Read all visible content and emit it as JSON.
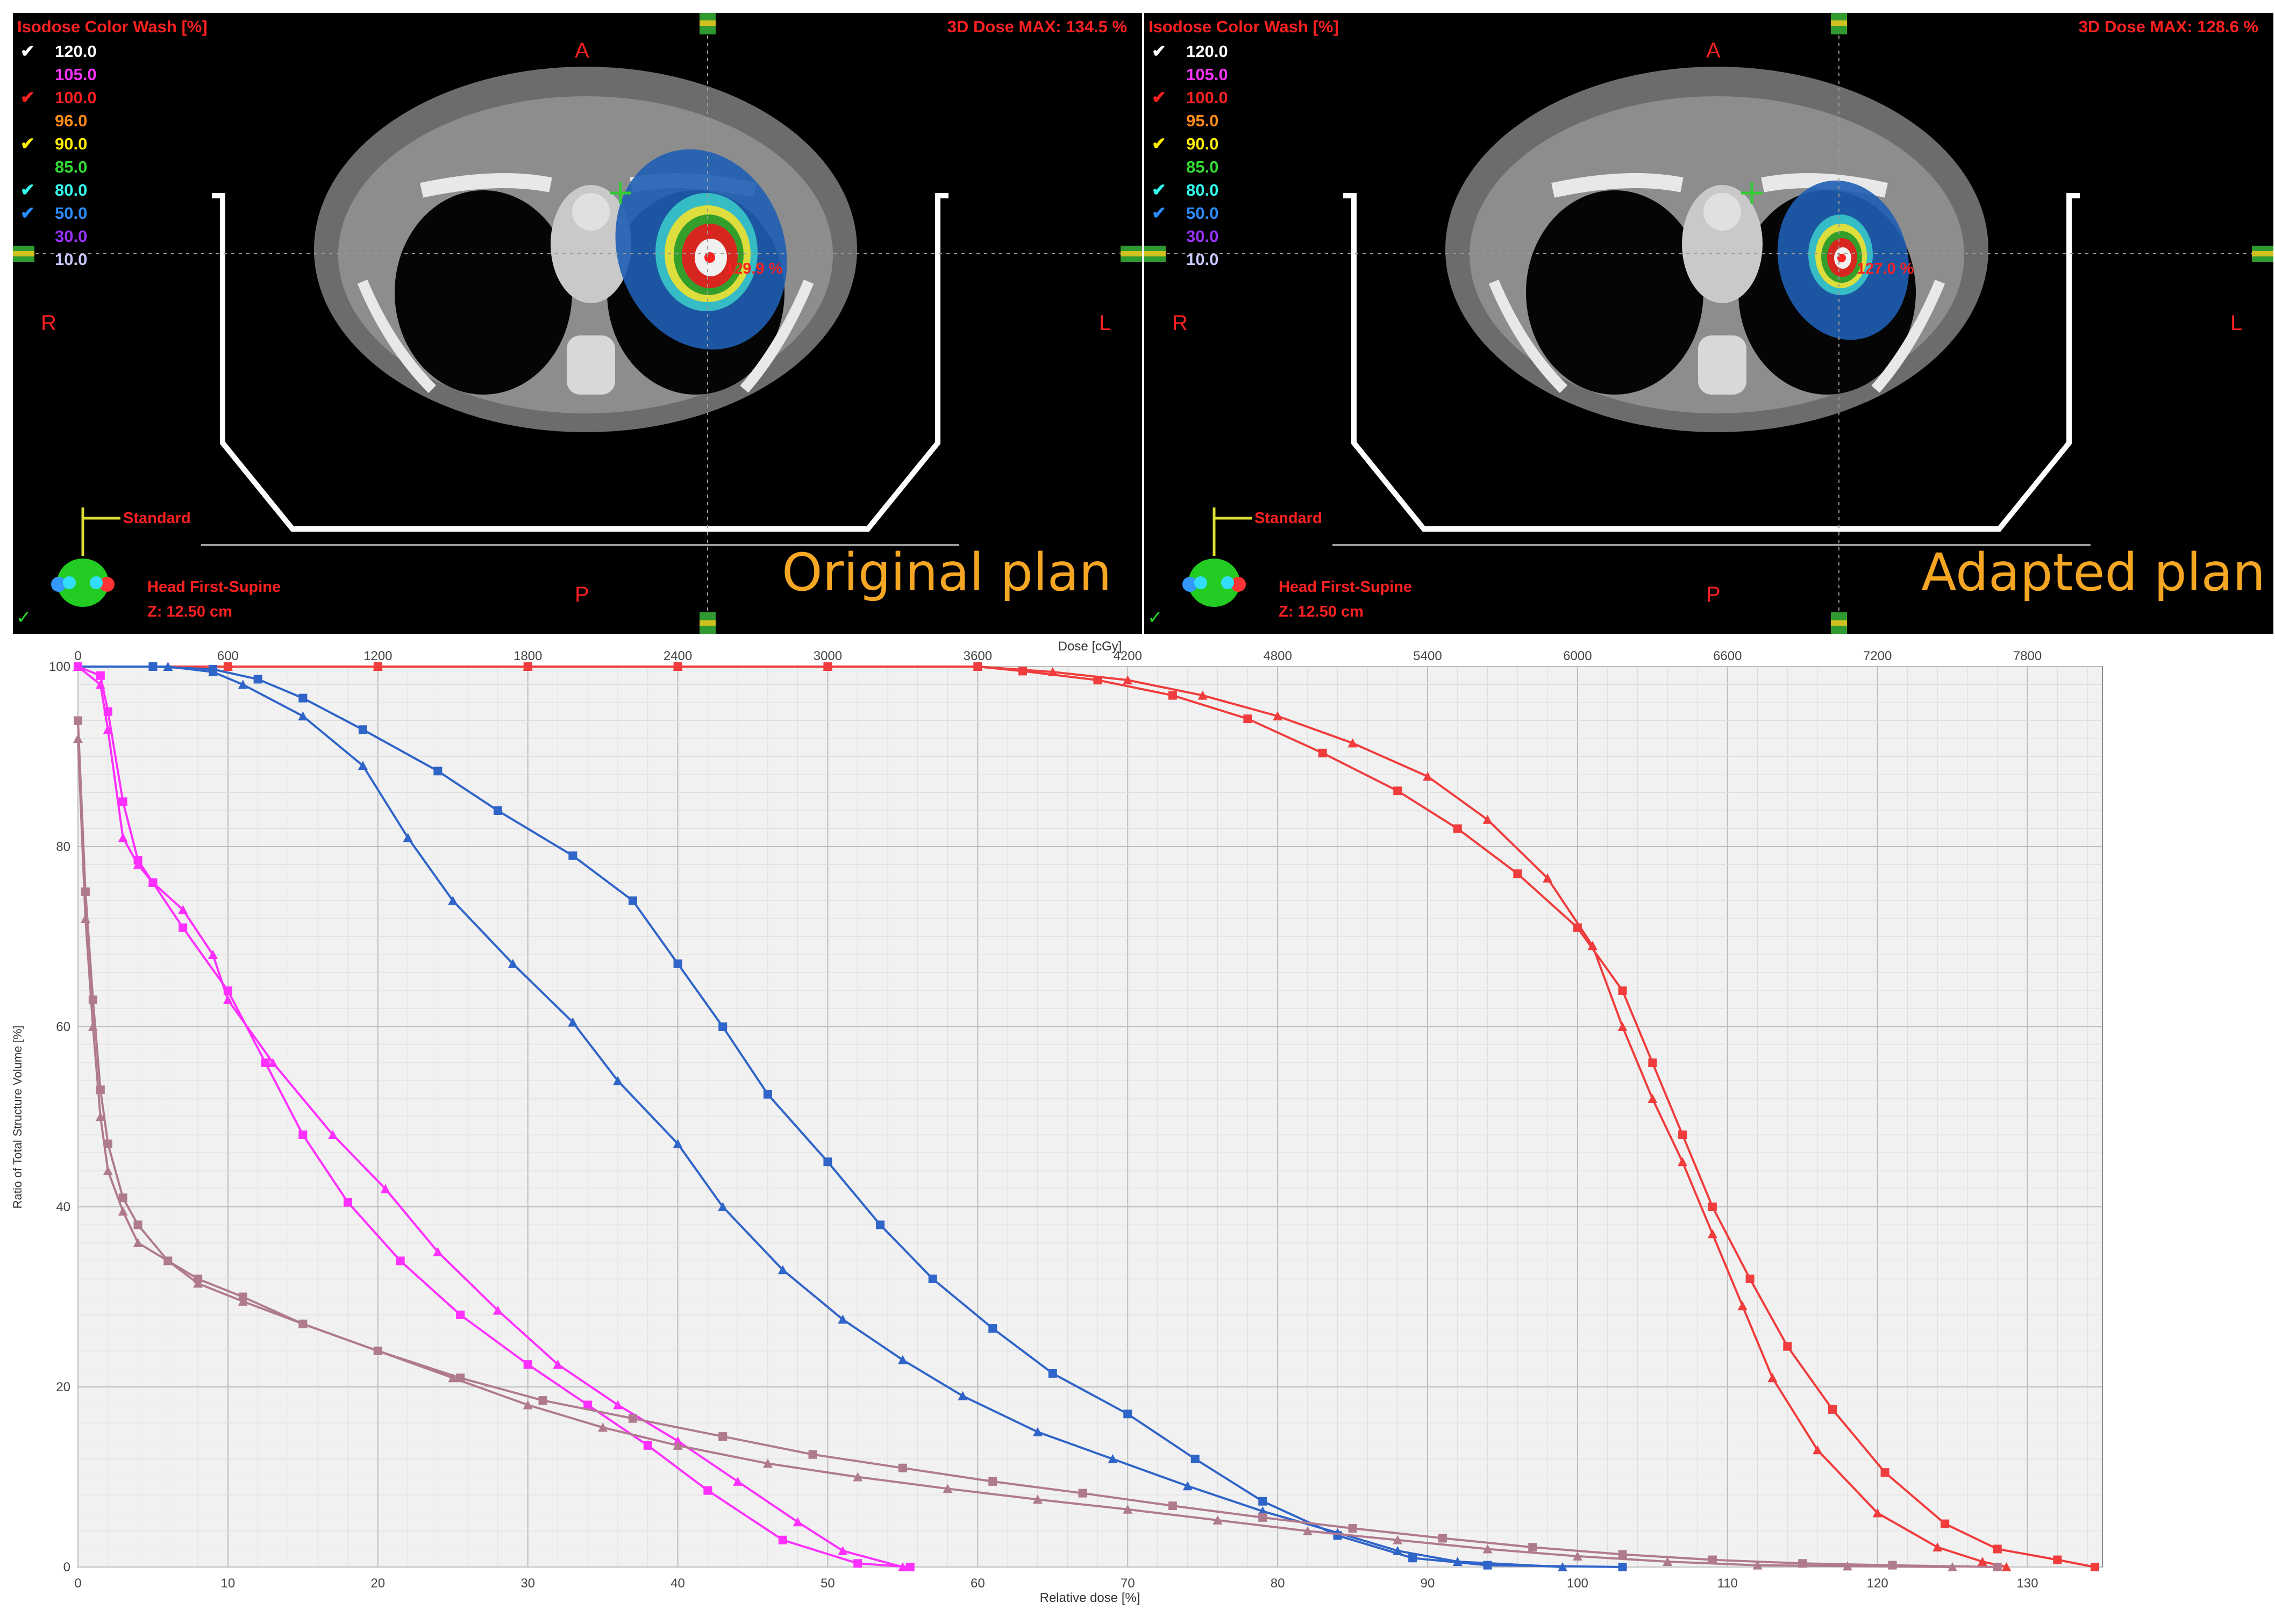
{
  "panels": [
    {
      "legend_title": "Isodose Color Wash [%]",
      "dose_max": "3D Dose MAX: 134.5 %",
      "isodose_levels": [
        {
          "value": "120.0",
          "color": "#ffffff",
          "checked": true
        },
        {
          "value": "105.0",
          "color": "#ff33ff",
          "checked": false
        },
        {
          "value": "100.0",
          "color": "#ff2020",
          "checked": true
        },
        {
          "value": "96.0",
          "color": "#ff8c1a",
          "checked": false
        },
        {
          "value": "90.0",
          "color": "#ffee00",
          "checked": true
        },
        {
          "value": "85.0",
          "color": "#33dd33",
          "checked": false
        },
        {
          "value": "80.0",
          "color": "#33ffee",
          "checked": true
        },
        {
          "value": "50.0",
          "color": "#2a8cff",
          "checked": true
        },
        {
          "value": "30.0",
          "color": "#9933ff",
          "checked": false
        },
        {
          "value": "10.0",
          "color": "#c8c8ff",
          "checked": false
        }
      ],
      "orientation": {
        "anterior": "A",
        "posterior": "P",
        "right": "R",
        "left": "L"
      },
      "point_dose": "129.9 %",
      "view_label": "Standard",
      "patient_position": "Head First-Supine",
      "slice_z": "Z: 12.50 cm",
      "plan_label": "Original plan",
      "check": "✓"
    },
    {
      "legend_title": "Isodose Color Wash [%]",
      "dose_max": "3D Dose MAX: 128.6 %",
      "isodose_levels": [
        {
          "value": "120.0",
          "color": "#ffffff",
          "checked": true
        },
        {
          "value": "105.0",
          "color": "#ff33ff",
          "checked": false
        },
        {
          "value": "100.0",
          "color": "#ff2020",
          "checked": true
        },
        {
          "value": "95.0",
          "color": "#ff8c1a",
          "checked": false
        },
        {
          "value": "90.0",
          "color": "#ffee00",
          "checked": true
        },
        {
          "value": "85.0",
          "color": "#33dd33",
          "checked": false
        },
        {
          "value": "80.0",
          "color": "#33ffee",
          "checked": true
        },
        {
          "value": "50.0",
          "color": "#2a8cff",
          "checked": true
        },
        {
          "value": "30.0",
          "color": "#9933ff",
          "checked": false
        },
        {
          "value": "10.0",
          "color": "#c8c8ff",
          "checked": false
        }
      ],
      "orientation": {
        "anterior": "A",
        "posterior": "P",
        "right": "R",
        "left": "L"
      },
      "point_dose": "127.0 %",
      "view_label": "Standard",
      "patient_position": "Head First-Supine",
      "slice_z": "Z: 12.50 cm",
      "plan_label": "Adapted plan",
      "check": "✓"
    }
  ],
  "chart_data": {
    "type": "line",
    "title": "",
    "xlabel": "Relative dose [%]",
    "x2label": "Dose [cGy]",
    "ylabel": "Ratio of Total Structure Volume [%]",
    "xlim": [
      0,
      135
    ],
    "x2lim": [
      0,
      8100
    ],
    "ylim": [
      0,
      100
    ],
    "x_ticks": [
      0,
      10,
      20,
      30,
      40,
      50,
      60,
      70,
      80,
      90,
      100,
      110,
      120,
      130
    ],
    "x2_ticks": [
      0,
      600,
      1200,
      1800,
      2400,
      3000,
      3600,
      4200,
      4800,
      5400,
      6000,
      6600,
      7200,
      7800
    ],
    "y_ticks": [
      0,
      20,
      40,
      60,
      80,
      100
    ],
    "grid": true,
    "series": [
      {
        "color": "#f03c3c",
        "marker": "square",
        "points": [
          [
            0,
            100
          ],
          [
            10,
            100
          ],
          [
            20,
            100
          ],
          [
            30,
            100
          ],
          [
            40,
            100
          ],
          [
            50,
            100
          ],
          [
            60,
            100
          ],
          [
            63,
            99.5
          ],
          [
            68,
            98.5
          ],
          [
            73,
            96.8
          ],
          [
            78,
            94.2
          ],
          [
            83,
            90.4
          ],
          [
            88,
            86.2
          ],
          [
            92,
            82
          ],
          [
            96,
            77
          ],
          [
            100,
            71
          ],
          [
            103,
            64
          ],
          [
            105,
            56
          ],
          [
            107,
            48
          ],
          [
            109,
            40
          ],
          [
            111.5,
            32
          ],
          [
            114,
            24.5
          ],
          [
            117,
            17.5
          ],
          [
            120.5,
            10.5
          ],
          [
            124.5,
            4.8
          ],
          [
            128,
            2
          ],
          [
            132,
            0.8
          ],
          [
            134.5,
            0
          ]
        ]
      },
      {
        "color": "#f03c3c",
        "marker": "triangle",
        "points": [
          [
            0,
            100
          ],
          [
            10,
            100
          ],
          [
            20,
            100
          ],
          [
            30,
            100
          ],
          [
            40,
            100
          ],
          [
            50,
            100
          ],
          [
            60,
            100
          ],
          [
            65,
            99.4
          ],
          [
            70,
            98.5
          ],
          [
            75,
            96.8
          ],
          [
            80,
            94.5
          ],
          [
            85,
            91.5
          ],
          [
            90,
            87.8
          ],
          [
            94,
            83
          ],
          [
            98,
            76.5
          ],
          [
            101,
            69
          ],
          [
            103,
            60
          ],
          [
            105,
            52
          ],
          [
            107,
            45
          ],
          [
            109,
            37
          ],
          [
            111,
            29
          ],
          [
            113,
            21
          ],
          [
            116,
            13
          ],
          [
            120,
            6
          ],
          [
            124,
            2.2
          ],
          [
            127,
            0.6
          ],
          [
            128.6,
            0
          ]
        ]
      },
      {
        "color": "#2f64c8",
        "marker": "square",
        "points": [
          [
            0,
            100
          ],
          [
            5,
            100
          ],
          [
            9,
            99.7
          ],
          [
            12,
            98.6
          ],
          [
            15,
            96.5
          ],
          [
            19,
            93
          ],
          [
            24,
            88.4
          ],
          [
            28,
            84
          ],
          [
            33,
            79
          ],
          [
            37,
            74
          ],
          [
            40,
            67
          ],
          [
            43,
            60
          ],
          [
            46,
            52.5
          ],
          [
            50,
            45
          ],
          [
            53.5,
            38
          ],
          [
            57,
            32
          ],
          [
            61,
            26.5
          ],
          [
            65,
            21.5
          ],
          [
            70,
            17
          ],
          [
            74.5,
            12
          ],
          [
            79,
            7.3
          ],
          [
            84,
            3.5
          ],
          [
            89,
            1
          ],
          [
            94,
            0.2
          ],
          [
            103,
            0
          ]
        ]
      },
      {
        "color": "#2f64c8",
        "marker": "triangle",
        "points": [
          [
            0,
            100
          ],
          [
            6,
            100
          ],
          [
            9,
            99.4
          ],
          [
            11,
            98
          ],
          [
            15,
            94.5
          ],
          [
            19,
            89
          ],
          [
            22,
            81
          ],
          [
            25,
            74
          ],
          [
            29,
            67
          ],
          [
            33,
            60.5
          ],
          [
            36,
            54
          ],
          [
            40,
            47
          ],
          [
            43,
            40
          ],
          [
            47,
            33
          ],
          [
            51,
            27.5
          ],
          [
            55,
            23
          ],
          [
            59,
            19
          ],
          [
            64,
            15
          ],
          [
            69,
            12
          ],
          [
            74,
            9
          ],
          [
            79,
            6.2
          ],
          [
            84,
            3.8
          ],
          [
            88,
            1.8
          ],
          [
            92,
            0.6
          ],
          [
            99,
            0
          ]
        ]
      },
      {
        "color": "#ff30ff",
        "marker": "square",
        "points": [
          [
            0,
            100
          ],
          [
            1.5,
            99
          ],
          [
            2,
            95
          ],
          [
            3,
            85
          ],
          [
            4,
            78.5
          ],
          [
            5,
            76
          ],
          [
            7,
            71
          ],
          [
            10,
            64
          ],
          [
            12.5,
            56
          ],
          [
            15,
            48
          ],
          [
            18,
            40.5
          ],
          [
            21.5,
            34
          ],
          [
            25.5,
            28
          ],
          [
            30,
            22.5
          ],
          [
            34,
            18
          ],
          [
            38,
            13.5
          ],
          [
            42,
            8.5
          ],
          [
            47,
            3
          ],
          [
            52,
            0.4
          ],
          [
            55.5,
            0
          ]
        ]
      },
      {
        "color": "#ff30ff",
        "marker": "triangle",
        "points": [
          [
            0,
            100
          ],
          [
            1.5,
            98
          ],
          [
            2,
            93
          ],
          [
            3,
            81
          ],
          [
            4,
            78
          ],
          [
            5,
            76
          ],
          [
            7,
            73
          ],
          [
            9,
            68
          ],
          [
            10,
            63
          ],
          [
            13,
            56
          ],
          [
            17,
            48
          ],
          [
            20.5,
            42
          ],
          [
            24,
            35
          ],
          [
            28,
            28.5
          ],
          [
            32,
            22.5
          ],
          [
            36,
            18
          ],
          [
            40,
            14
          ],
          [
            44,
            9.5
          ],
          [
            48,
            5
          ],
          [
            51,
            1.8
          ],
          [
            55,
            0
          ]
        ]
      },
      {
        "color": "#b07a8e",
        "marker": "square",
        "points": [
          [
            0,
            94
          ],
          [
            0.5,
            75
          ],
          [
            1,
            63
          ],
          [
            1.5,
            53
          ],
          [
            2,
            47
          ],
          [
            3,
            41
          ],
          [
            4,
            38
          ],
          [
            6,
            34
          ],
          [
            8,
            32
          ],
          [
            11,
            30
          ],
          [
            15,
            27
          ],
          [
            20,
            24
          ],
          [
            25.5,
            21
          ],
          [
            31,
            18.5
          ],
          [
            37,
            16.5
          ],
          [
            43,
            14.5
          ],
          [
            49,
            12.5
          ],
          [
            55,
            11
          ],
          [
            61,
            9.5
          ],
          [
            67,
            8.2
          ],
          [
            73,
            6.8
          ],
          [
            79,
            5.5
          ],
          [
            85,
            4.3
          ],
          [
            91,
            3.2
          ],
          [
            97,
            2.2
          ],
          [
            103,
            1.4
          ],
          [
            109,
            0.8
          ],
          [
            115,
            0.4
          ],
          [
            121,
            0.2
          ],
          [
            128,
            0
          ]
        ]
      },
      {
        "color": "#b07a8e",
        "marker": "triangle",
        "points": [
          [
            0,
            92
          ],
          [
            0.5,
            72
          ],
          [
            1,
            60
          ],
          [
            1.5,
            50
          ],
          [
            2,
            44
          ],
          [
            3,
            39.5
          ],
          [
            4,
            36
          ],
          [
            6,
            34
          ],
          [
            8,
            31.5
          ],
          [
            11,
            29.5
          ],
          [
            15,
            27
          ],
          [
            20,
            24
          ],
          [
            25,
            21
          ],
          [
            30,
            18
          ],
          [
            35,
            15.5
          ],
          [
            40,
            13.5
          ],
          [
            46,
            11.5
          ],
          [
            52,
            10
          ],
          [
            58,
            8.7
          ],
          [
            64,
            7.5
          ],
          [
            70,
            6.4
          ],
          [
            76,
            5.2
          ],
          [
            82,
            4
          ],
          [
            88,
            3
          ],
          [
            94,
            2
          ],
          [
            100,
            1.2
          ],
          [
            106,
            0.6
          ],
          [
            112,
            0.2
          ],
          [
            118,
            0.1
          ],
          [
            125,
            0
          ]
        ]
      }
    ]
  }
}
